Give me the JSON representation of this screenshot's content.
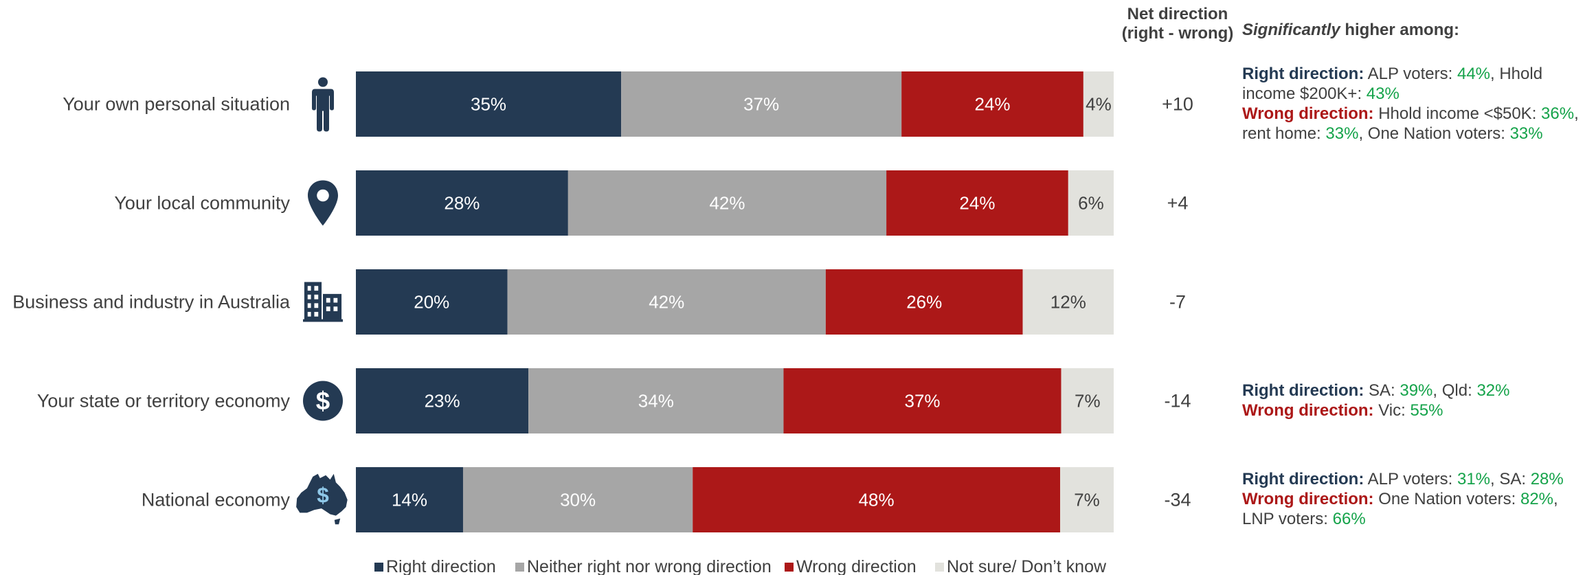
{
  "colors": {
    "right": "#243a53",
    "neither": "#a6a6a6",
    "wrong": "#ac1818",
    "not_sure": "#e2e2dd",
    "highlight": "#15a34a",
    "text": "#404040"
  },
  "chart_data": {
    "type": "bar",
    "orientation": "horizontal",
    "stacked": true,
    "normalized": true,
    "categories": [
      "Your own personal situation",
      "Your local community",
      "Business and industry in Australia",
      "Your state or territory economy",
      "National economy"
    ],
    "category_icons": [
      "person-icon",
      "location-pin-icon",
      "office-building-icon",
      "dollar-coin-icon",
      "australia-dollar-icon"
    ],
    "series": [
      {
        "name": "Right direction",
        "key": "right",
        "values": [
          35,
          28,
          20,
          23,
          14
        ]
      },
      {
        "name": "Neither right nor wrong direction",
        "key": "neither",
        "values": [
          37,
          42,
          42,
          34,
          30
        ]
      },
      {
        "name": "Wrong direction",
        "key": "wrong",
        "values": [
          24,
          24,
          26,
          37,
          48
        ]
      },
      {
        "name": "Not sure/ Don’t know",
        "key": "not_sure",
        "values": [
          4,
          6,
          12,
          7,
          7
        ]
      }
    ],
    "value_suffix": "%",
    "net_direction": {
      "header_line1": "Net direction",
      "header_line2": "(right - wrong)",
      "values": [
        "+10",
        "+4",
        "-7",
        "-14",
        "-34"
      ]
    },
    "legend_position": "bottom",
    "grid": false
  },
  "significance": {
    "title_emph": "Significantly",
    "title_rest": " higher among:",
    "notes": [
      {
        "row": 0,
        "right_label": "Right direction:",
        "right": [
          {
            "t": " ALP voters: "
          },
          {
            "t": "44%",
            "hl": true
          },
          {
            "t": ", Hhold income $200K+: "
          },
          {
            "t": "43%",
            "hl": true
          }
        ],
        "wrong_label": "Wrong direction:",
        "wrong": [
          {
            "t": " Hhold income <$50K: "
          },
          {
            "t": "36%",
            "hl": true
          },
          {
            "t": ", rent home: "
          },
          {
            "t": "33%",
            "hl": true
          },
          {
            "t": ", One Nation voters: "
          },
          {
            "t": "33%",
            "hl": true
          }
        ]
      },
      {
        "row": 3,
        "right_label": "Right direction:",
        "right": [
          {
            "t": "  SA: "
          },
          {
            "t": "39%",
            "hl": true
          },
          {
            "t": ", Qld: "
          },
          {
            "t": "32%",
            "hl": true
          }
        ],
        "wrong_label": "Wrong direction:",
        "wrong": [
          {
            "t": " Vic: "
          },
          {
            "t": "55%",
            "hl": true
          }
        ]
      },
      {
        "row": 4,
        "right_label": "Right direction:",
        "right": [
          {
            "t": " ALP voters: "
          },
          {
            "t": "31%",
            "hl": true
          },
          {
            "t": ", SA: "
          },
          {
            "t": "28%",
            "hl": true
          }
        ],
        "wrong_label": "Wrong direction:",
        "wrong": [
          {
            "t": " One Nation voters: "
          },
          {
            "t": "82%",
            "hl": true
          },
          {
            "t": ", LNP voters: "
          },
          {
            "t": "66%",
            "hl": true
          }
        ]
      }
    ]
  }
}
